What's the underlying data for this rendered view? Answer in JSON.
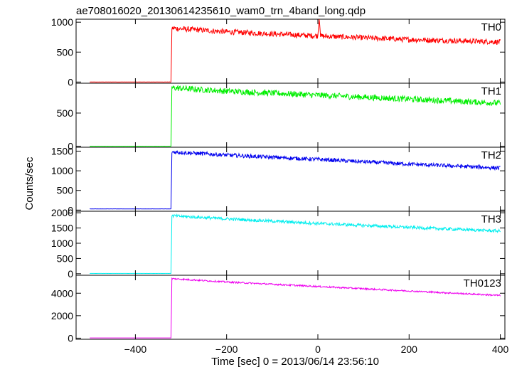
{
  "chart_data": {
    "type": "line",
    "title": "ae708016020_20130614235610_wam0_trn_4band_long.qdp",
    "xlabel": "Time [sec] 0 = 2013/06/14 23:56:10",
    "ylabel": "Counts/sec",
    "xlim": [
      -530,
      410
    ],
    "x_ticks": [
      -400,
      -200,
      0,
      200,
      400
    ],
    "x_tick_labels": [
      "−400",
      "−200",
      "0",
      "200",
      "400"
    ],
    "grid": false,
    "x_step": 1,
    "panels": [
      {
        "name": "TH0",
        "color": "#ff0000",
        "ylim": [
          -20,
          1050
        ],
        "y_ticks": [
          0,
          500,
          1000
        ],
        "y_tick_labels": [
          "0",
          "500",
          "1000"
        ],
        "series_x": [
          -500,
          -330,
          -322,
          -320,
          -200,
          0,
          200,
          400
        ],
        "series_y": [
          0,
          0,
          0,
          900,
          840,
          770,
          710,
          670
        ],
        "noise": 45,
        "spike": {
          "x": 3,
          "y": 1050
        }
      },
      {
        "name": "TH1",
        "color": "#00ee00",
        "ylim": [
          -15,
          950
        ],
        "y_ticks": [
          0,
          500
        ],
        "y_tick_labels": [
          "0",
          "500"
        ],
        "series_x": [
          -500,
          -330,
          -322,
          -320,
          -200,
          0,
          200,
          400
        ],
        "series_y": [
          0,
          0,
          0,
          880,
          830,
          770,
          710,
          650
        ],
        "noise": 45
      },
      {
        "name": "TH2",
        "color": "#0000ee",
        "ylim": [
          -30,
          1600
        ],
        "y_ticks": [
          0,
          500,
          1000,
          1500
        ],
        "y_tick_labels": [
          "0",
          "500",
          "1000",
          "1500"
        ],
        "series_x": [
          -500,
          -330,
          -322,
          -320,
          -200,
          0,
          200,
          400
        ],
        "series_y": [
          30,
          30,
          30,
          1480,
          1400,
          1290,
          1170,
          1070
        ],
        "noise": 50
      },
      {
        "name": "TH3",
        "color": "#00eeee",
        "ylim": [
          -50,
          2050
        ],
        "y_ticks": [
          0,
          500,
          1000,
          1500,
          2000
        ],
        "y_tick_labels": [
          "0",
          "500",
          "1000",
          "1500",
          "2000"
        ],
        "series_x": [
          -500,
          -330,
          -322,
          -320,
          -200,
          0,
          200,
          400
        ],
        "series_y": [
          10,
          10,
          10,
          1900,
          1800,
          1650,
          1520,
          1400
        ],
        "noise": 50
      },
      {
        "name": "TH0123",
        "color": "#ee00ee",
        "ylim": [
          -100,
          5600
        ],
        "y_ticks": [
          0,
          2000,
          4000
        ],
        "y_tick_labels": [
          "0",
          "2000",
          "4000"
        ],
        "series_x": [
          -500,
          -330,
          -322,
          -320,
          -200,
          0,
          200,
          400
        ],
        "series_y": [
          20,
          20,
          20,
          5300,
          5000,
          4600,
          4200,
          3800
        ],
        "noise": 70
      }
    ]
  }
}
